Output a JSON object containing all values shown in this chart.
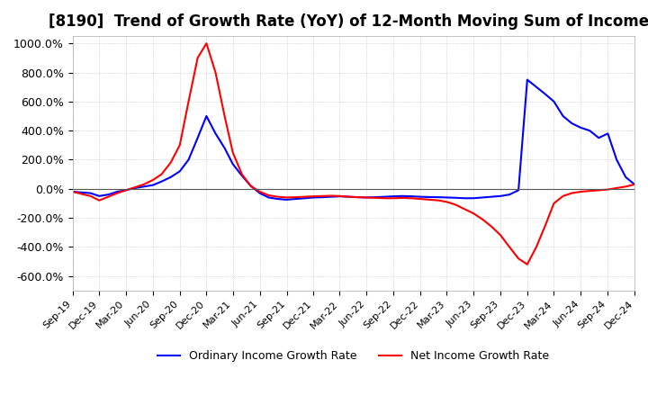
{
  "title": "[8190]  Trend of Growth Rate (YoY) of 12-Month Moving Sum of Incomes",
  "title_fontsize": 12,
  "ylim": [
    -700,
    1050
  ],
  "yticks": [
    -600,
    -400,
    -200,
    0,
    200,
    400,
    600,
    800,
    1000
  ],
  "ytick_labels": [
    "-600.0%",
    "-400.0%",
    "-200.0%",
    "0.0%",
    "200.0%",
    "400.0%",
    "600.0%",
    "800.0%",
    "1000.0%"
  ],
  "blue_color": "#0000FF",
  "red_color": "#FF0000",
  "grid_color": "#BBBBBB",
  "background_color": "#FFFFFF",
  "legend_ordinary": "Ordinary Income Growth Rate",
  "legend_net": "Net Income Growth Rate",
  "ordinary": {
    "2019-09": -20,
    "2019-10": -25,
    "2019-11": -30,
    "2019-12": -50,
    "2020-01": -40,
    "2020-02": -20,
    "2020-03": -10,
    "2020-04": 5,
    "2020-05": 15,
    "2020-06": 25,
    "2020-07": 50,
    "2020-08": 80,
    "2020-09": 120,
    "2020-10": 200,
    "2020-11": 350,
    "2020-12": 500,
    "2021-01": 380,
    "2021-02": 280,
    "2021-03": 170,
    "2021-04": 90,
    "2021-05": 20,
    "2021-06": -30,
    "2021-07": -60,
    "2021-08": -70,
    "2021-09": -75,
    "2021-10": -70,
    "2021-11": -65,
    "2021-12": -60,
    "2022-01": -58,
    "2022-02": -55,
    "2022-03": -52,
    "2022-04": -55,
    "2022-05": -58,
    "2022-06": -60,
    "2022-07": -58,
    "2022-08": -55,
    "2022-09": -52,
    "2022-10": -50,
    "2022-11": -52,
    "2022-12": -55,
    "2023-01": -57,
    "2023-02": -58,
    "2023-03": -60,
    "2023-04": -62,
    "2023-05": -65,
    "2023-06": -65,
    "2023-07": -60,
    "2023-08": -55,
    "2023-09": -50,
    "2023-10": -40,
    "2023-11": -10,
    "2023-12": 750,
    "2024-01": 700,
    "2024-02": 650,
    "2024-03": 600,
    "2024-04": 500,
    "2024-05": 450,
    "2024-06": 420,
    "2024-07": 400,
    "2024-08": 350,
    "2024-09": 380,
    "2024-10": 200,
    "2024-11": 80,
    "2024-12": 30
  },
  "net": {
    "2019-09": -20,
    "2019-10": -35,
    "2019-11": -50,
    "2019-12": -80,
    "2020-01": -55,
    "2020-02": -30,
    "2020-03": -10,
    "2020-04": 10,
    "2020-05": 30,
    "2020-06": 60,
    "2020-07": 100,
    "2020-08": 180,
    "2020-09": 300,
    "2020-10": 600,
    "2020-11": 900,
    "2020-12": 1000,
    "2021-01": 800,
    "2021-02": 500,
    "2021-03": 250,
    "2021-04": 100,
    "2021-05": 20,
    "2021-06": -20,
    "2021-07": -45,
    "2021-08": -55,
    "2021-09": -60,
    "2021-10": -58,
    "2021-11": -55,
    "2021-12": -52,
    "2022-01": -50,
    "2022-02": -48,
    "2022-03": -50,
    "2022-04": -55,
    "2022-05": -58,
    "2022-06": -60,
    "2022-07": -62,
    "2022-08": -65,
    "2022-09": -65,
    "2022-10": -63,
    "2022-11": -65,
    "2022-12": -70,
    "2023-01": -75,
    "2023-02": -80,
    "2023-03": -90,
    "2023-04": -110,
    "2023-05": -140,
    "2023-06": -170,
    "2023-07": -210,
    "2023-08": -260,
    "2023-09": -320,
    "2023-10": -400,
    "2023-11": -480,
    "2023-12": -520,
    "2024-01": -400,
    "2024-02": -250,
    "2024-03": -100,
    "2024-04": -50,
    "2024-05": -30,
    "2024-06": -20,
    "2024-07": -15,
    "2024-08": -10,
    "2024-09": -5,
    "2024-10": 5,
    "2024-11": 15,
    "2024-12": 30
  }
}
